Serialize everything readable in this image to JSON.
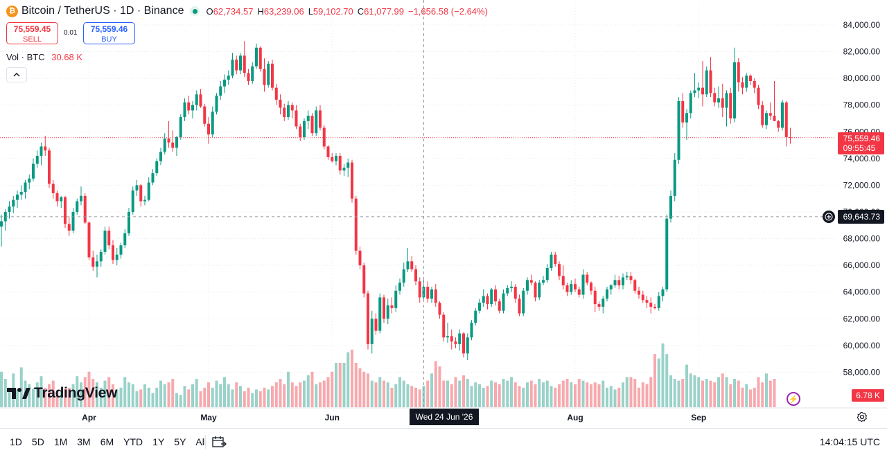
{
  "header": {
    "coin_symbol": "₿",
    "title": "Bitcoin / TetherUS · 1D · Binance",
    "open_label": "O",
    "open": "62,734.57",
    "high_label": "H",
    "high": "63,239.06",
    "low_label": "L",
    "low": "59,102.70",
    "close_label": "C",
    "close": "61,077.99",
    "change": "−1,656.58 (−2.64%)"
  },
  "trade": {
    "sell_price": "75,559.45",
    "sell_label": "SELL",
    "spread": "0.01",
    "buy_price": "75,559.46",
    "buy_label": "BUY"
  },
  "volume_legend": {
    "label": "Vol · BTC",
    "value": "30.68 K"
  },
  "collapse_icon": "chevron-up-icon",
  "logo": {
    "text": "TradingView"
  },
  "price_axis": {
    "last_price": "75,559.46",
    "countdown": "09:55:45",
    "crosshair_price": "69,643.73",
    "volume_tag": "6.78 K"
  },
  "crosshair_date": "Wed 24 Jun '26",
  "bottom_bar": {
    "ranges": [
      "1D",
      "5D",
      "1M",
      "3M",
      "6M",
      "YTD",
      "1Y",
      "5Y",
      "All"
    ],
    "time": "14:04:15 UTC"
  },
  "colors": {
    "up": "#089981",
    "down": "#f23645",
    "up_volume": "#99d2c8",
    "down_volume": "#f7a9ae"
  },
  "chart_data": {
    "type": "candlestick",
    "symbol": "BTCUSDT",
    "interval": "1D",
    "y_ticks": [
      58000,
      60000,
      62000,
      64000,
      66000,
      68000,
      70000,
      72000,
      74000,
      76000,
      78000,
      80000,
      82000,
      84000
    ],
    "y_tick_labels": [
      "58,000.00",
      "60,000.00",
      "62,000.00",
      "64,000.00",
      "66,000.00",
      "68,000.00",
      "70,000.00",
      "72,000.00",
      "74,000.00",
      "76,000.00",
      "78,000.00",
      "80,000.00",
      "82,000.00",
      "84,000.00"
    ],
    "x_tick_labels": [
      {
        "label": "Apr",
        "index": 22
      },
      {
        "label": "May",
        "index": 52
      },
      {
        "label": "Jun",
        "index": 83
      },
      {
        "label": "Aug",
        "index": 144
      },
      {
        "label": "Sep",
        "index": 175
      }
    ],
    "last_price": 75559.46,
    "crosshair": {
      "index": 106,
      "price": 69643.73
    },
    "candles": [
      [
        68900,
        69800,
        67400,
        69300
      ],
      [
        69300,
        70200,
        68600,
        70000
      ],
      [
        70000,
        70800,
        69500,
        70400
      ],
      [
        70400,
        71200,
        69900,
        70900
      ],
      [
        70900,
        71600,
        70300,
        71300
      ],
      [
        71300,
        72000,
        70900,
        71500
      ],
      [
        71500,
        72400,
        71000,
        72200
      ],
      [
        72200,
        72800,
        71700,
        72500
      ],
      [
        72500,
        74000,
        72300,
        73600
      ],
      [
        73600,
        74600,
        73300,
        74200
      ],
      [
        74200,
        75200,
        73500,
        74900
      ],
      [
        74900,
        75700,
        74200,
        74600
      ],
      [
        74600,
        74800,
        71800,
        72100
      ],
      [
        72100,
        72400,
        71000,
        71400
      ],
      [
        71400,
        71600,
        70400,
        70800
      ],
      [
        70800,
        71200,
        70300,
        71100
      ],
      [
        71100,
        71200,
        68800,
        69100
      ],
      [
        69100,
        69600,
        68200,
        68600
      ],
      [
        68600,
        70300,
        68400,
        70000
      ],
      [
        70000,
        71000,
        69800,
        70800
      ],
      [
        70800,
        71900,
        70500,
        71200
      ],
      [
        71200,
        71400,
        69100,
        69200
      ],
      [
        69200,
        69300,
        66400,
        66600
      ],
      [
        66600,
        67100,
        65600,
        65900
      ],
      [
        65900,
        66800,
        65100,
        66300
      ],
      [
        66300,
        67200,
        65900,
        67000
      ],
      [
        67000,
        68900,
        66800,
        68600
      ],
      [
        68600,
        68900,
        67200,
        67500
      ],
      [
        67500,
        67900,
        66100,
        66400
      ],
      [
        66400,
        67300,
        66000,
        66800
      ],
      [
        66800,
        67700,
        66500,
        67500
      ],
      [
        67500,
        68700,
        67300,
        68400
      ],
      [
        68400,
        70300,
        68200,
        70000
      ],
      [
        70000,
        71900,
        69800,
        71600
      ],
      [
        71600,
        72400,
        71200,
        72000
      ],
      [
        72000,
        72100,
        70400,
        70800
      ],
      [
        70800,
        71200,
        70500,
        70900
      ],
      [
        70900,
        72600,
        70800,
        72200
      ],
      [
        72200,
        73200,
        72000,
        72900
      ],
      [
        72900,
        74000,
        72700,
        73800
      ],
      [
        73800,
        74800,
        73500,
        74500
      ],
      [
        74500,
        75900,
        74300,
        75500
      ],
      [
        75500,
        76800,
        74800,
        75200
      ],
      [
        75200,
        76100,
        74500,
        74800
      ],
      [
        74800,
        75700,
        74200,
        75600
      ],
      [
        75600,
        77300,
        75400,
        77100
      ],
      [
        77100,
        78500,
        76800,
        78200
      ],
      [
        78200,
        78700,
        77300,
        77600
      ],
      [
        77600,
        78300,
        77000,
        78000
      ],
      [
        78000,
        79100,
        77600,
        78800
      ],
      [
        78800,
        79200,
        77800,
        77900
      ],
      [
        77900,
        78100,
        76400,
        76600
      ],
      [
        76600,
        77100,
        75100,
        75800
      ],
      [
        75800,
        77900,
        75600,
        77500
      ],
      [
        77500,
        78900,
        77300,
        78700
      ],
      [
        78700,
        79800,
        78400,
        79400
      ],
      [
        79400,
        80300,
        78900,
        79900
      ],
      [
        79900,
        80600,
        79500,
        80200
      ],
      [
        80200,
        81900,
        80000,
        81400
      ],
      [
        81400,
        81700,
        80300,
        80600
      ],
      [
        80600,
        81900,
        80300,
        81700
      ],
      [
        81700,
        82800,
        80100,
        80400
      ],
      [
        80400,
        80700,
        79500,
        79800
      ],
      [
        79800,
        81200,
        79600,
        80900
      ],
      [
        80900,
        82600,
        80700,
        82300
      ],
      [
        82300,
        82400,
        80500,
        80700
      ],
      [
        80700,
        81500,
        79000,
        79500
      ],
      [
        79500,
        81300,
        79300,
        81100
      ],
      [
        81100,
        81400,
        79100,
        79300
      ],
      [
        79300,
        79600,
        78000,
        78400
      ],
      [
        78400,
        78800,
        77300,
        77800
      ],
      [
        77800,
        78100,
        76800,
        77100
      ],
      [
        77100,
        78300,
        76900,
        78000
      ],
      [
        78000,
        78200,
        77000,
        77600
      ],
      [
        77600,
        78000,
        76200,
        76400
      ],
      [
        76400,
        76600,
        75300,
        75600
      ],
      [
        75600,
        77000,
        75400,
        76800
      ],
      [
        76800,
        77600,
        76200,
        77200
      ],
      [
        77200,
        77400,
        75700,
        75900
      ],
      [
        75900,
        77900,
        75700,
        77600
      ],
      [
        77600,
        78000,
        76100,
        76300
      ],
      [
        76300,
        76500,
        74700,
        74900
      ],
      [
        74900,
        75000,
        73900,
        74100
      ],
      [
        74100,
        74400,
        73700,
        73800
      ],
      [
        73800,
        74400,
        73500,
        74200
      ],
      [
        74200,
        74400,
        72800,
        73100
      ],
      [
        73100,
        73600,
        72700,
        73300
      ],
      [
        73300,
        74000,
        72600,
        73700
      ],
      [
        73700,
        73900,
        70700,
        71000
      ],
      [
        71000,
        71200,
        66800,
        67100
      ],
      [
        67100,
        67400,
        65700,
        66000
      ],
      [
        66000,
        66200,
        63600,
        63900
      ],
      [
        63900,
        64100,
        59700,
        60100
      ],
      [
        60100,
        62600,
        59400,
        62000
      ],
      [
        62000,
        62400,
        60800,
        61100
      ],
      [
        61100,
        63900,
        60900,
        63600
      ],
      [
        63600,
        63800,
        61700,
        62000
      ],
      [
        62000,
        63500,
        61600,
        63000
      ],
      [
        63000,
        63600,
        62400,
        62800
      ],
      [
        62800,
        64500,
        62500,
        64100
      ],
      [
        64100,
        65000,
        63800,
        64700
      ],
      [
        64700,
        66200,
        64400,
        65700
      ],
      [
        65700,
        67300,
        65500,
        66300
      ],
      [
        66300,
        66700,
        65500,
        65700
      ],
      [
        65700,
        66000,
        64500,
        64800
      ],
      [
        64800,
        65100,
        63200,
        63600
      ],
      [
        63600,
        64900,
        63300,
        64400
      ],
      [
        64400,
        64800,
        63200,
        63500
      ],
      [
        63500,
        64400,
        63200,
        64200
      ],
      [
        64200,
        64600,
        62900,
        63200
      ],
      [
        63200,
        63300,
        62000,
        62300
      ],
      [
        62300,
        62500,
        60300,
        60600
      ],
      [
        60600,
        61700,
        60200,
        60700
      ],
      [
        60700,
        61200,
        59700,
        60300
      ],
      [
        60300,
        60600,
        59800,
        60100
      ],
      [
        60100,
        61200,
        59600,
        60900
      ],
      [
        60900,
        61000,
        59100,
        59400
      ],
      [
        59400,
        60900,
        58900,
        60600
      ],
      [
        60600,
        61900,
        60400,
        61700
      ],
      [
        61700,
        62800,
        61500,
        62600
      ],
      [
        62600,
        63500,
        62400,
        63200
      ],
      [
        63200,
        64200,
        62900,
        63700
      ],
      [
        63700,
        63900,
        62700,
        63100
      ],
      [
        63100,
        64300,
        62900,
        64200
      ],
      [
        64200,
        64500,
        63000,
        63300
      ],
      [
        63300,
        63500,
        62400,
        62600
      ],
      [
        62600,
        64200,
        62400,
        63900
      ],
      [
        63900,
        64500,
        63700,
        64300
      ],
      [
        64300,
        64800,
        64000,
        64400
      ],
      [
        64400,
        64600,
        63200,
        63500
      ],
      [
        63500,
        63800,
        62200,
        62400
      ],
      [
        62400,
        64300,
        62200,
        64100
      ],
      [
        64100,
        65100,
        63800,
        64900
      ],
      [
        64900,
        65300,
        64500,
        64700
      ],
      [
        64700,
        64800,
        63300,
        63600
      ],
      [
        63600,
        64900,
        63400,
        64700
      ],
      [
        64700,
        65200,
        64500,
        64900
      ],
      [
        64900,
        66100,
        64700,
        65800
      ],
      [
        65800,
        67000,
        65600,
        66800
      ],
      [
        66800,
        67000,
        65900,
        66100
      ],
      [
        66100,
        66300,
        64900,
        65200
      ],
      [
        65200,
        66000,
        64200,
        64500
      ],
      [
        64500,
        64700,
        63700,
        64000
      ],
      [
        64000,
        64900,
        63800,
        64600
      ],
      [
        64600,
        65000,
        64000,
        64200
      ],
      [
        64200,
        64400,
        63600,
        63800
      ],
      [
        63800,
        65700,
        63500,
        65300
      ],
      [
        65300,
        65500,
        64500,
        64700
      ],
      [
        64700,
        64800,
        63800,
        64100
      ],
      [
        64100,
        64400,
        62500,
        63100
      ],
      [
        63100,
        63300,
        62600,
        62900
      ],
      [
        62900,
        63700,
        62400,
        63500
      ],
      [
        63500,
        64400,
        63300,
        64200
      ],
      [
        64200,
        64600,
        63800,
        64500
      ],
      [
        64500,
        65300,
        64300,
        64900
      ],
      [
        64900,
        65200,
        64200,
        64500
      ],
      [
        64500,
        65400,
        64200,
        65100
      ],
      [
        65100,
        65500,
        64900,
        65200
      ],
      [
        65200,
        65500,
        64600,
        64900
      ],
      [
        64900,
        65000,
        63900,
        64100
      ],
      [
        64100,
        64400,
        63500,
        63800
      ],
      [
        63800,
        64100,
        63200,
        63400
      ],
      [
        63400,
        63700,
        62800,
        63200
      ],
      [
        63200,
        63600,
        62400,
        62900
      ],
      [
        62900,
        63100,
        62700,
        62800
      ],
      [
        62800,
        64000,
        62600,
        63700
      ],
      [
        63700,
        64400,
        63300,
        64200
      ],
      [
        64200,
        69800,
        64000,
        69500
      ],
      [
        69500,
        71600,
        69200,
        71200
      ],
      [
        71200,
        74400,
        70800,
        73900
      ],
      [
        73900,
        78600,
        73600,
        78300
      ],
      [
        78300,
        78900,
        76300,
        76700
      ],
      [
        76700,
        77700,
        75400,
        77400
      ],
      [
        77400,
        79100,
        77000,
        78900
      ],
      [
        78900,
        80400,
        78600,
        79100
      ],
      [
        79100,
        79700,
        78500,
        79300
      ],
      [
        79300,
        81300,
        77900,
        78800
      ],
      [
        78800,
        80900,
        78600,
        80600
      ],
      [
        80600,
        81600,
        78600,
        78900
      ],
      [
        78900,
        79300,
        77900,
        78200
      ],
      [
        78200,
        79400,
        77800,
        78500
      ],
      [
        78500,
        79600,
        77100,
        77800
      ],
      [
        77800,
        79100,
        76400,
        78900
      ],
      [
        78900,
        79300,
        76600,
        77000
      ],
      [
        77000,
        82300,
        76700,
        81200
      ],
      [
        81200,
        81500,
        79000,
        79700
      ],
      [
        79700,
        80100,
        78800,
        79300
      ],
      [
        79300,
        80400,
        79000,
        80200
      ],
      [
        80200,
        80300,
        79500,
        79800
      ],
      [
        79800,
        80000,
        78900,
        79300
      ],
      [
        79300,
        79500,
        77700,
        78000
      ],
      [
        78000,
        78300,
        76300,
        76500
      ],
      [
        76500,
        77600,
        76200,
        77400
      ],
      [
        77400,
        78200,
        76900,
        77200
      ],
      [
        77200,
        79800,
        76800,
        76800
      ],
      [
        76800,
        76900,
        76000,
        76300
      ],
      [
        76300,
        78400,
        76100,
        78200
      ],
      [
        78200,
        78300,
        74900,
        75600
      ],
      [
        75600,
        76300,
        75100,
        75559.46
      ]
    ],
    "volumes": [
      0.4,
      0.32,
      0.22,
      0.38,
      0.2,
      0.45,
      0.3,
      0.26,
      0.21,
      0.28,
      0.35,
      0.22,
      0.26,
      0.3,
      0.19,
      0.17,
      0.21,
      0.22,
      0.26,
      0.35,
      0.28,
      0.34,
      0.4,
      0.32,
      0.28,
      0.22,
      0.3,
      0.34,
      0.26,
      0.2,
      0.22,
      0.34,
      0.28,
      0.26,
      0.18,
      0.2,
      0.26,
      0.22,
      0.16,
      0.22,
      0.3,
      0.26,
      0.28,
      0.32,
      0.16,
      0.14,
      0.24,
      0.2,
      0.26,
      0.32,
      0.18,
      0.22,
      0.28,
      0.22,
      0.3,
      0.26,
      0.34,
      0.26,
      0.2,
      0.28,
      0.24,
      0.18,
      0.22,
      0.16,
      0.2,
      0.18,
      0.22,
      0.2,
      0.24,
      0.28,
      0.32,
      0.26,
      0.4,
      0.28,
      0.24,
      0.28,
      0.3,
      0.36,
      0.4,
      0.26,
      0.28,
      0.3,
      0.34,
      0.4,
      0.5,
      0.5,
      0.5,
      0.62,
      0.65,
      0.5,
      0.44,
      0.4,
      0.38,
      0.3,
      0.28,
      0.34,
      0.3,
      0.28,
      0.22,
      0.26,
      0.34,
      0.3,
      0.26,
      0.24,
      0.22,
      0.2,
      0.24,
      0.3,
      0.38,
      0.52,
      0.46,
      0.3,
      0.3,
      0.26,
      0.34,
      0.3,
      0.36,
      0.32,
      0.24,
      0.28,
      0.26,
      0.22,
      0.24,
      0.3,
      0.28,
      0.26,
      0.32,
      0.3,
      0.34,
      0.28,
      0.24,
      0.22,
      0.28,
      0.3,
      0.26,
      0.32,
      0.28,
      0.3,
      0.24,
      0.22,
      0.26,
      0.3,
      0.32,
      0.28,
      0.26,
      0.32,
      0.3,
      0.28,
      0.26,
      0.28,
      0.26,
      0.3,
      0.22,
      0.24,
      0.2,
      0.22,
      0.28,
      0.34,
      0.34,
      0.32,
      0.22,
      0.28,
      0.26,
      0.34,
      0.6,
      0.55,
      0.72,
      0.6,
      0.36,
      0.32,
      0.3,
      0.32,
      0.48,
      0.38,
      0.36,
      0.34,
      0.3,
      0.32,
      0.3,
      0.28,
      0.34,
      0.38,
      0.34,
      0.26,
      0.32,
      0.3,
      0.22,
      0.26,
      0.2,
      0.22,
      0.34,
      0.28,
      0.38,
      0.3,
      0.32
    ]
  }
}
